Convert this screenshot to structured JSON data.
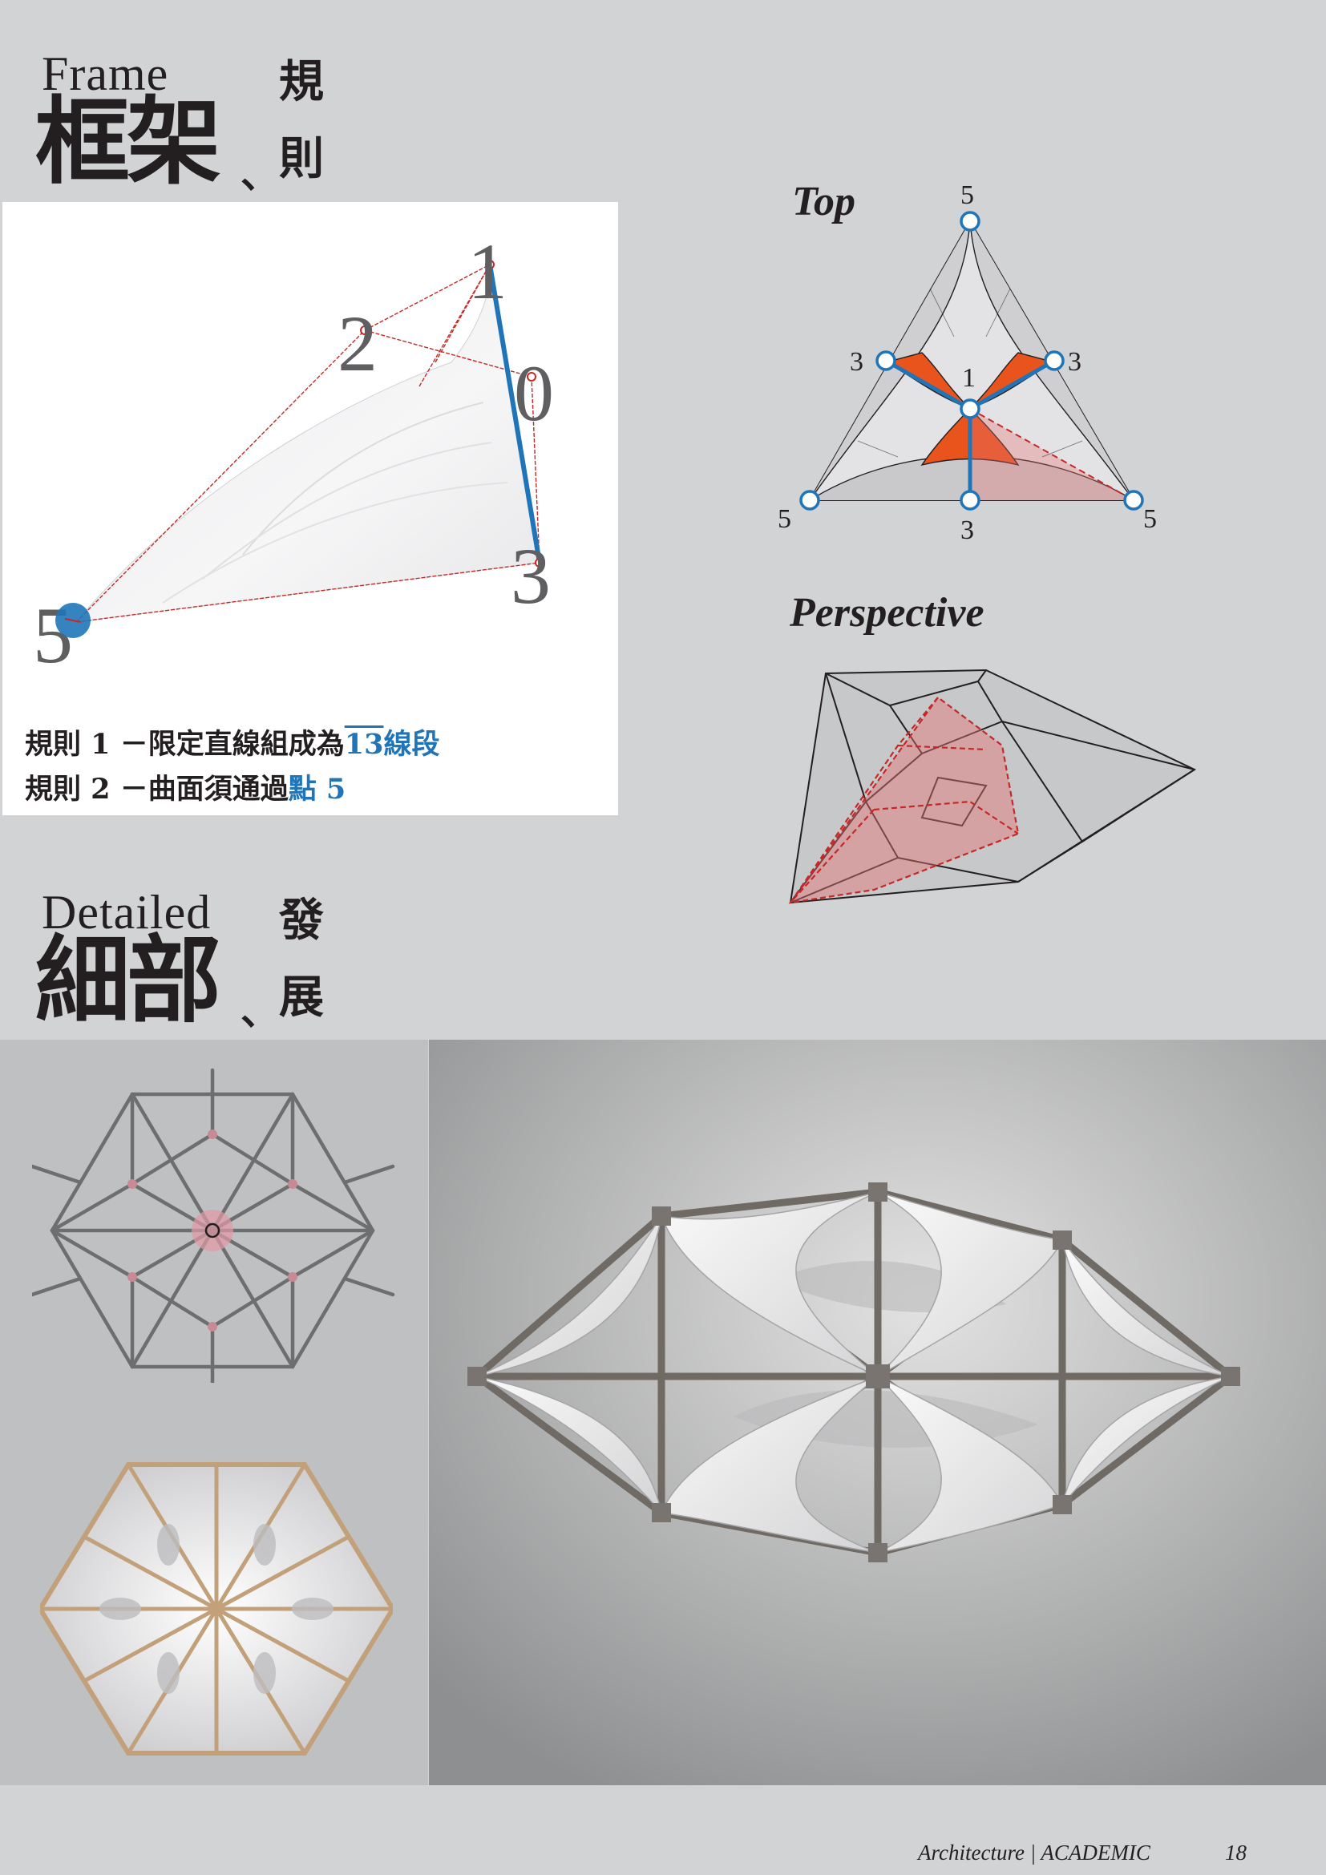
{
  "frame_section": {
    "title_en": "Frame",
    "title_zh": "框架",
    "title_sep": "、",
    "title_side_1": "規",
    "title_side_2": "則",
    "diagram_labels": {
      "p1": "1",
      "p2": "2",
      "p0": "0",
      "p3": "3",
      "p5": "5"
    },
    "rule1": {
      "prefix": "規則 1 －限定直線組成為",
      "highlight_number": "13",
      "highlight_suffix": "線段"
    },
    "rule2": {
      "prefix": "規則 2 －曲面須通過",
      "highlight": "點 5"
    }
  },
  "top_view": {
    "label": "Top",
    "node_labels": {
      "top": "5",
      "left_mid": "3",
      "right_mid": "3",
      "center": "1",
      "bottom_left": "5",
      "bottom_mid": "3",
      "bottom_right": "5"
    }
  },
  "perspective_view": {
    "label": "Perspective"
  },
  "detailed_section": {
    "title_en": "Detailed",
    "title_zh": "細部",
    "title_sep": "、",
    "title_side_1": "發",
    "title_side_2": "展"
  },
  "footer": {
    "caption": "Architecture | ACADEMIC",
    "page_number": "18"
  },
  "colors": {
    "page_bg": "#d2d3d5",
    "accent_blue": "#1f75b8",
    "accent_orange": "#e8541c",
    "guide_red": "#c62828",
    "text_dark": "#231f20"
  }
}
